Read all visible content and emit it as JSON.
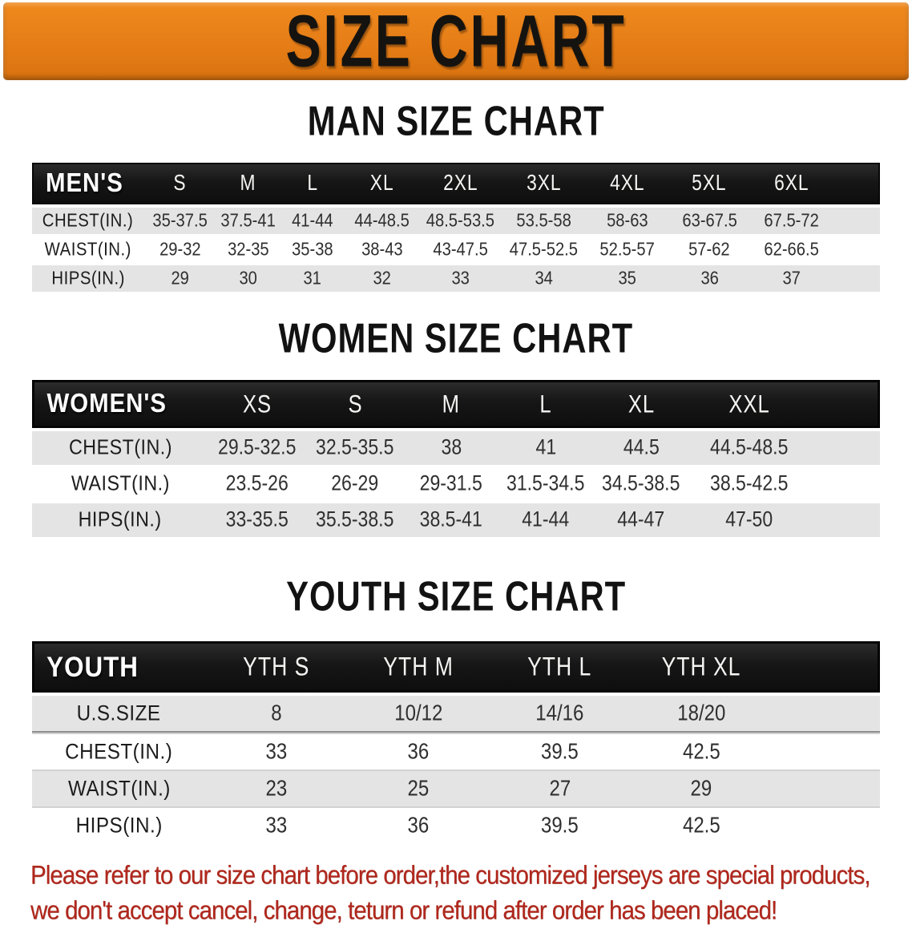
{
  "banner": {
    "title": "SIZE CHART",
    "bg_color": "#e67d17",
    "text_color": "#151310"
  },
  "sections": [
    {
      "id": "men",
      "title": "MAN SIZE CHART",
      "header_label": "MEN'S",
      "columns": [
        "S",
        "M",
        "L",
        "XL",
        "2XL",
        "3XL",
        "4XL",
        "5XL",
        "6XL"
      ],
      "rows": [
        {
          "label": "CHEST(IN.)",
          "values": [
            "35-37.5",
            "37.5-41",
            "41-44",
            "44-48.5",
            "48.5-53.5",
            "53.5-58",
            "58-63",
            "63-67.5",
            "67.5-72"
          ]
        },
        {
          "label": "WAIST(IN.)",
          "values": [
            "29-32",
            "32-35",
            "35-38",
            "38-43",
            "43-47.5",
            "47.5-52.5",
            "52.5-57",
            "57-62",
            "62-66.5"
          ]
        },
        {
          "label": "HIPS(IN.)",
          "values": [
            "29",
            "30",
            "31",
            "32",
            "33",
            "34",
            "35",
            "36",
            "37"
          ]
        }
      ]
    },
    {
      "id": "women",
      "title": "WOMEN SIZE CHART",
      "header_label": "WOMEN'S",
      "columns": [
        "XS",
        "S",
        "M",
        "L",
        "XL",
        "XXL"
      ],
      "rows": [
        {
          "label": "CHEST(IN.)",
          "values": [
            "29.5-32.5",
            "32.5-35.5",
            "38",
            "41",
            "44.5",
            "44.5-48.5"
          ]
        },
        {
          "label": "WAIST(IN.)",
          "values": [
            "23.5-26",
            "26-29",
            "29-31.5",
            "31.5-34.5",
            "34.5-38.5",
            "38.5-42.5"
          ]
        },
        {
          "label": "HIPS(IN.)",
          "values": [
            "33-35.5",
            "35.5-38.5",
            "38.5-41",
            "41-44",
            "44-47",
            "47-50"
          ]
        }
      ]
    },
    {
      "id": "youth",
      "title": "YOUTH SIZE CHART",
      "header_label": "YOUTH",
      "columns": [
        "YTH S",
        "YTH M",
        "YTH L",
        "YTH XL"
      ],
      "rows": [
        {
          "label": "U.S.SIZE",
          "values": [
            "8",
            "10/12",
            "14/16",
            "18/20"
          ]
        },
        {
          "label": "CHEST(IN.)",
          "values": [
            "33",
            "36",
            "39.5",
            "42.5"
          ]
        },
        {
          "label": "WAIST(IN.)",
          "values": [
            "23",
            "25",
            "27",
            "29"
          ]
        },
        {
          "label": "HIPS(IN.)",
          "values": [
            "33",
            "36",
            "39.5",
            "42.5"
          ]
        }
      ]
    }
  ],
  "disclaimer": {
    "line1": "Please refer to our size chart before order,the customized jerseys are special products,",
    "line2": "we don't accept cancel, change, teturn or refund after order has been placed!",
    "color": "#b0271c"
  }
}
